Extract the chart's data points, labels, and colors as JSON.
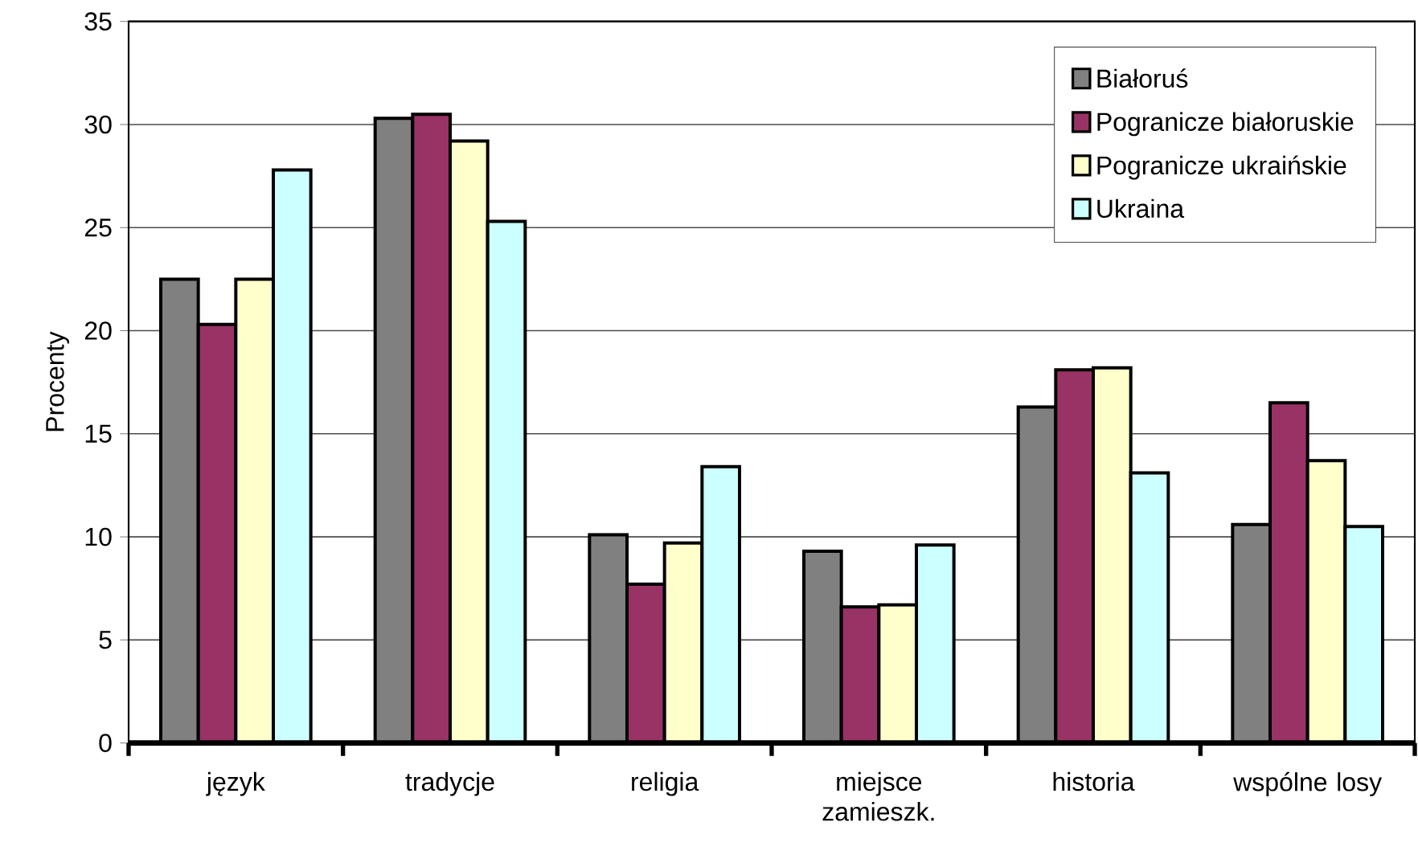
{
  "chart_data": {
    "type": "bar",
    "ylabel": "Procenty",
    "categories": [
      "język",
      "tradycje",
      "religia",
      "miejsce zamieszk.",
      "historia",
      "wspólne losy"
    ],
    "series": [
      {
        "name": "Białoruś",
        "color": "#808080",
        "values": [
          22.5,
          30.3,
          10.1,
          9.3,
          16.3,
          10.6
        ]
      },
      {
        "name": "Pogranicze białoruskie",
        "color": "#993366",
        "values": [
          20.3,
          30.5,
          7.7,
          6.6,
          18.1,
          16.5
        ]
      },
      {
        "name": "Pogranicze ukraińskie",
        "color": "#ffffcc",
        "values": [
          22.5,
          29.2,
          9.7,
          6.7,
          18.2,
          13.7
        ]
      },
      {
        "name": "Ukraina",
        "color": "#ccffff",
        "values": [
          27.8,
          25.3,
          13.4,
          9.6,
          13.1,
          10.5
        ]
      }
    ],
    "ylim": [
      0,
      35
    ],
    "yticks": [
      0,
      5,
      10,
      15,
      20,
      25,
      30,
      35
    ],
    "grid": "y",
    "legend": "top right"
  }
}
